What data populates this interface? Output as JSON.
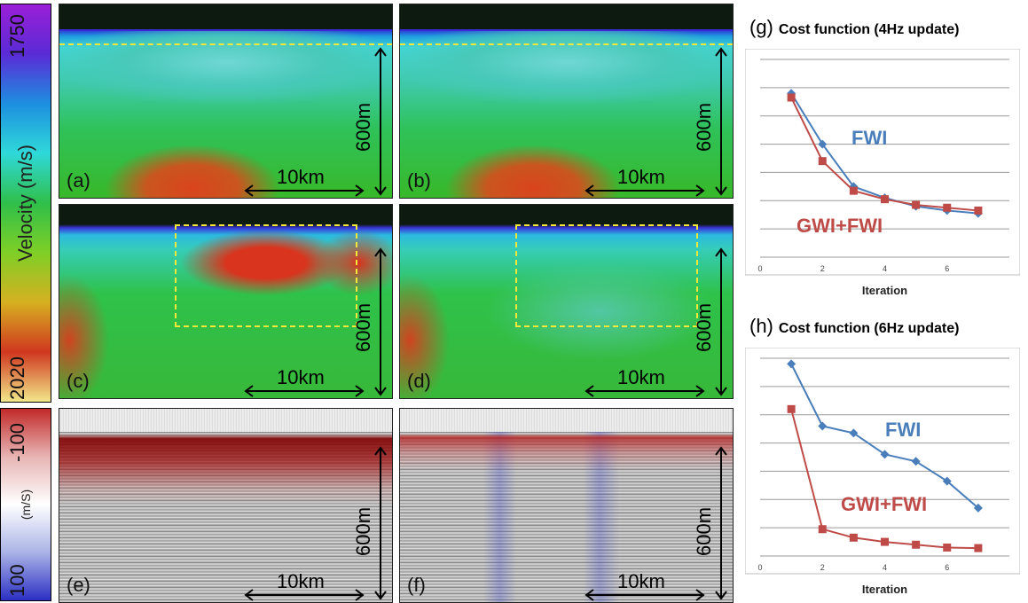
{
  "colorbar_velocity": {
    "label": "Velocity (m/s)",
    "max_label": "1750",
    "min_label": "2020",
    "colors": [
      "#9a1fd6",
      "#5a2bd6",
      "#1d8fe0",
      "#2fd9d9",
      "#2fbf4a",
      "#7fcf26",
      "#d6b021",
      "#d0371f",
      "#f2e88a"
    ]
  },
  "colorbar_diff": {
    "label": "(m/S)",
    "top_label": "-100",
    "bottom_label": "100",
    "colors": [
      "#c22a2a",
      "#e8b4b4",
      "#ffffff",
      "#aab3e6",
      "#2b2fc4"
    ]
  },
  "panels": [
    {
      "id": "a",
      "label": "(a)",
      "scale": "10km",
      "depth": "600m",
      "kind": "velocity-smooth"
    },
    {
      "id": "b",
      "label": "(b)",
      "scale": "10km",
      "depth": "600m",
      "kind": "velocity-smooth"
    },
    {
      "id": "c",
      "label": "(c)",
      "scale": "10km",
      "depth": "600m",
      "kind": "velocity-red"
    },
    {
      "id": "d",
      "label": "(d)",
      "scale": "10km",
      "depth": "600m",
      "kind": "velocity-green"
    },
    {
      "id": "e",
      "label": "(e)",
      "scale": "10km",
      "depth": "600m",
      "kind": "seismic-red"
    },
    {
      "id": "f",
      "label": "(f)",
      "scale": "10km",
      "depth": "600m",
      "kind": "seismic-blue"
    }
  ],
  "chart_data": [
    {
      "type": "line",
      "panel_label": "(g)",
      "title": "Cost function (4Hz update)",
      "xlabel": "Iteration",
      "ylabel": "",
      "xlim": [
        0,
        8
      ],
      "xticks": [
        0,
        2,
        4,
        6
      ],
      "ylim": [
        0,
        7
      ],
      "grid": true,
      "series": [
        {
          "name": "FWI",
          "color": "#4a7ebb",
          "marker": "diamond",
          "x": [
            1,
            2,
            3,
            4,
            5,
            6,
            7
          ],
          "y": [
            5.8,
            4.0,
            2.5,
            2.1,
            1.8,
            1.65,
            1.55
          ]
        },
        {
          "name": "GWI+FWI",
          "color": "#be4b48",
          "marker": "square",
          "x": [
            1,
            2,
            3,
            4,
            5,
            6,
            7
          ],
          "y": [
            5.65,
            3.4,
            2.35,
            2.05,
            1.85,
            1.75,
            1.65
          ]
        }
      ]
    },
    {
      "type": "line",
      "panel_label": "(h)",
      "title": "Cost function (6Hz update)",
      "xlabel": "Iteration",
      "ylabel": "",
      "xlim": [
        0,
        8
      ],
      "xticks": [
        0,
        2,
        4,
        6
      ],
      "ylim": [
        0,
        7
      ],
      "grid": true,
      "series": [
        {
          "name": "FWI",
          "color": "#4a7ebb",
          "marker": "diamond",
          "x": [
            1,
            2,
            3,
            4,
            5,
            6,
            7
          ],
          "y": [
            6.8,
            4.6,
            4.35,
            3.6,
            3.35,
            2.65,
            1.7
          ]
        },
        {
          "name": "GWI+FWI",
          "color": "#be4b48",
          "marker": "square",
          "x": [
            1,
            2,
            3,
            4,
            5,
            6,
            7
          ],
          "y": [
            5.2,
            0.95,
            0.65,
            0.5,
            0.4,
            0.3,
            0.28
          ]
        }
      ]
    }
  ]
}
